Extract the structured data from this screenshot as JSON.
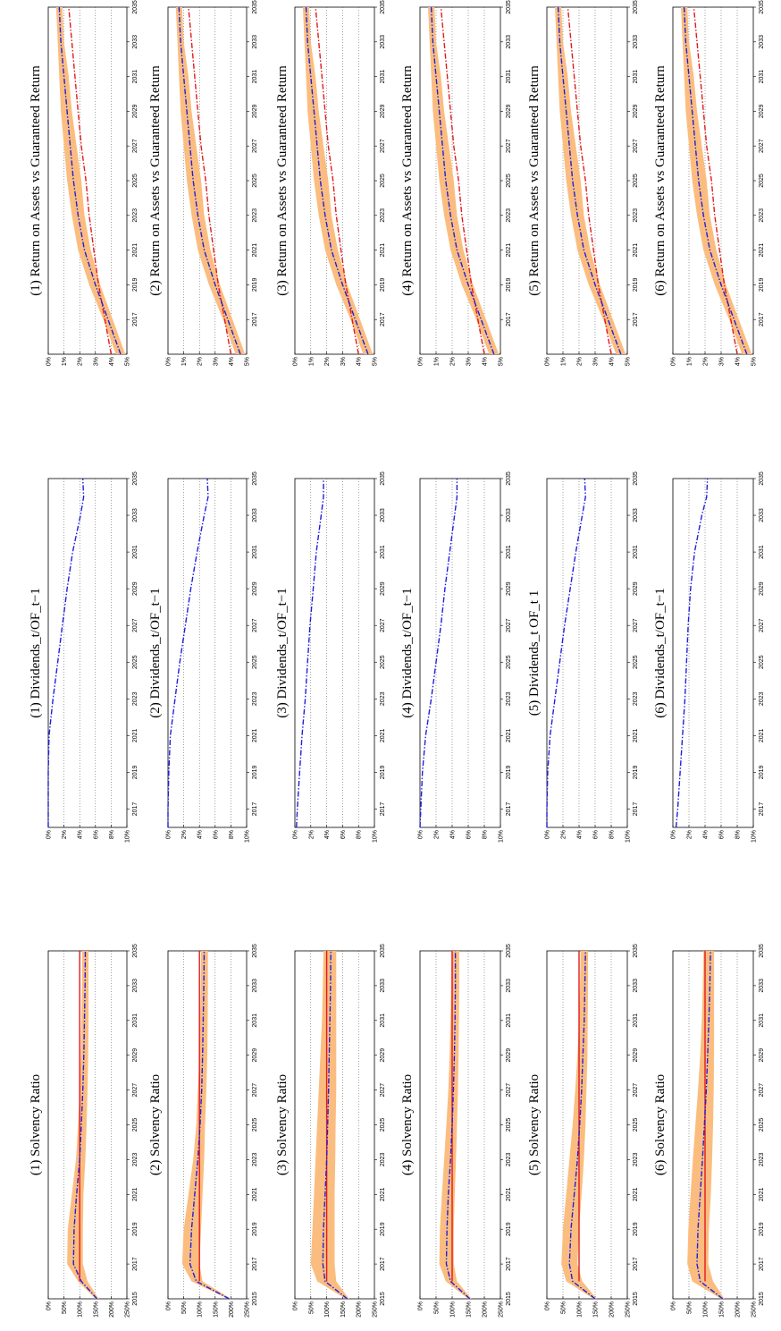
{
  "colors": {
    "band": "#fbbd7f",
    "blue_line": "#1f1fe0",
    "red_line": "#e31a1c",
    "frame": "#000000",
    "grid": "#444444"
  },
  "chart_data": [
    {
      "id": "roa",
      "type": "line",
      "titles": [
        "(1) Return on Assets vs Guaranteed Return",
        "(2) Return on Assets vs Guaranteed Return",
        "(3) Return on Assets vs Guaranteed Return",
        "(4) Return on Assets vs Guaranteed Return",
        "(5) Return on Assets vs Guaranteed Return",
        "(6) Return on Assets vs Guaranteed Return"
      ],
      "xlim": [
        2015,
        2035
      ],
      "ylim": [
        0,
        5
      ],
      "x_ticks": [
        2017,
        2019,
        2021,
        2023,
        2025,
        2027,
        2029,
        2031,
        2033,
        2035
      ],
      "x_tick_labels": [
        "2017",
        "2019",
        "2021",
        "2023",
        "2025",
        "2027",
        "2029",
        "2031",
        "2033",
        "2035"
      ],
      "y_ticks": [
        0,
        1,
        2,
        3,
        4,
        5
      ],
      "y_tick_labels": [
        "0%",
        "1%",
        "2%",
        "3%",
        "4%",
        "5%"
      ],
      "grid": "dotted",
      "x": [
        2015,
        2017,
        2019,
        2021,
        2023,
        2025,
        2027,
        2029,
        2031,
        2033,
        2035
      ],
      "band_low": [
        4.3,
        3.5,
        2.6,
        1.9,
        1.5,
        1.2,
        1.0,
        0.8,
        0.7,
        0.6,
        0.5
      ],
      "band_high": [
        4.9,
        4.1,
        3.3,
        2.7,
        2.3,
        2.1,
        1.8,
        1.5,
        1.3,
        1.0,
        0.9
      ],
      "series": [
        {
          "style": "dashdot",
          "color_key": "blue_line",
          "values": [
            4.6,
            3.8,
            3.0,
            2.3,
            1.9,
            1.6,
            1.4,
            1.2,
            1.0,
            0.8,
            0.7
          ]
        },
        {
          "style": "dashdot",
          "color_key": "red_line",
          "values": [
            4.0,
            3.6,
            3.2,
            2.9,
            2.6,
            2.4,
            2.1,
            1.9,
            1.7,
            1.5,
            1.3
          ]
        }
      ]
    },
    {
      "id": "dividends",
      "type": "line",
      "titles": [
        "(1) Dividends_t/OF_t−1",
        "(2) Dividends_t/OF_t−1",
        "(3) Dividends_t/OF_t−1",
        "(4) Dividends_t/OF_t−1",
        "(5) Dividends_t OF_t 1",
        "(6) Dividends_t/OF_t−1"
      ],
      "xlim": [
        2016,
        2035
      ],
      "ylim": [
        0,
        10
      ],
      "x_ticks": [
        2017,
        2019,
        2021,
        2023,
        2025,
        2027,
        2029,
        2031,
        2033,
        2035
      ],
      "x_tick_labels": [
        "2017",
        "2019",
        "2021",
        "2023",
        "2025",
        "2027",
        "2029",
        "2031",
        "2033",
        "2035"
      ],
      "y_ticks": [
        0,
        2,
        4,
        6,
        8,
        10
      ],
      "y_tick_labels": [
        "0%",
        "2%",
        "4%",
        "6%",
        "8%",
        "10%"
      ],
      "grid": "dotted",
      "x": [
        2016,
        2017,
        2019,
        2021,
        2023,
        2025,
        2027,
        2029,
        2031,
        2033,
        2034,
        2035
      ],
      "series": [
        {
          "style": "dashdot",
          "color_key": "blue_line",
          "values": [
            0.0,
            0.0,
            0.0,
            0.1,
            0.6,
            1.2,
            1.8,
            2.4,
            3.1,
            4.1,
            4.5,
            4.4
          ]
        },
        {
          "style": "dashdot",
          "color_key": "blue_line",
          "values": [
            0.0,
            0.0,
            0.1,
            0.3,
            0.9,
            1.5,
            2.2,
            2.9,
            3.7,
            4.6,
            5.1,
            5.0
          ]
        },
        {
          "style": "dashdot",
          "color_key": "blue_line",
          "values": [
            0.2,
            0.3,
            0.6,
            0.9,
            1.3,
            1.6,
            1.9,
            2.3,
            2.7,
            3.3,
            3.6,
            3.6
          ]
        },
        {
          "style": "dashdot",
          "color_key": "blue_line",
          "values": [
            0.0,
            0.1,
            0.3,
            0.7,
            1.4,
            2.0,
            2.6,
            3.1,
            3.7,
            4.3,
            4.6,
            4.6
          ]
        },
        {
          "style": "dashdot",
          "color_key": "blue_line",
          "values": [
            0.0,
            0.0,
            0.1,
            0.4,
            1.0,
            1.6,
            2.2,
            2.9,
            3.6,
            4.4,
            4.8,
            4.7
          ]
        },
        {
          "style": "dashdot",
          "color_key": "blue_line",
          "values": [
            0.4,
            0.6,
            0.9,
            1.2,
            1.5,
            1.7,
            1.9,
            2.2,
            2.7,
            3.6,
            4.2,
            4.3
          ]
        }
      ]
    },
    {
      "id": "solvency",
      "type": "line",
      "titles": [
        "(1) Solvency Ratio",
        "(2) Solvency Ratio",
        "(3) Solvency Ratio",
        "(4) Solvency Ratio",
        "(5) Solvency Ratio",
        "(6) Solvency Ratio"
      ],
      "xlim": [
        2015,
        2035
      ],
      "ylim": [
        0,
        250
      ],
      "x_ticks": [
        2015,
        2017,
        2019,
        2021,
        2023,
        2025,
        2027,
        2029,
        2031,
        2033,
        2035
      ],
      "x_tick_labels": [
        "2015",
        "2017",
        "2019",
        "2021",
        "2023",
        "2025",
        "2027",
        "2029",
        "2031",
        "2033",
        "2035"
      ],
      "y_ticks": [
        0,
        50,
        100,
        150,
        200,
        250
      ],
      "y_tick_labels": [
        "0%",
        "50%",
        "100%",
        "150%",
        "200%",
        "250%"
      ],
      "grid": "dotted",
      "reference_line": 100,
      "x": [
        2015,
        2016,
        2017,
        2019,
        2021,
        2023,
        2025,
        2027,
        2029,
        2031,
        2033,
        2035
      ],
      "panels": [
        {
          "band_low": [
            150,
            95,
            60,
            62,
            75,
            88,
            95,
            100,
            103,
            105,
            107,
            108
          ],
          "band_high": [
            160,
            125,
            110,
            110,
            112,
            118,
            122,
            125,
            127,
            128,
            128,
            128
          ],
          "median": [
            155,
            105,
            80,
            82,
            90,
            100,
            105,
            110,
            113,
            115,
            117,
            118
          ]
        },
        {
          "band_low": [
            190,
            75,
            45,
            50,
            65,
            80,
            90,
            95,
            100,
            102,
            104,
            105
          ],
          "band_high": [
            200,
            110,
            100,
            105,
            110,
            115,
            118,
            122,
            125,
            126,
            127,
            127
          ],
          "median": [
            195,
            90,
            70,
            75,
            85,
            95,
            102,
            107,
            110,
            112,
            114,
            115
          ]
        },
        {
          "band_low": [
            160,
            70,
            50,
            55,
            60,
            65,
            70,
            75,
            80,
            85,
            88,
            90
          ],
          "band_high": [
            170,
            130,
            125,
            125,
            125,
            127,
            128,
            130,
            130,
            130,
            130,
            130
          ],
          "median": [
            165,
            95,
            88,
            90,
            95,
            100,
            103,
            106,
            108,
            110,
            112,
            113
          ]
        },
        {
          "band_low": [
            150,
            80,
            60,
            62,
            68,
            75,
            82,
            88,
            92,
            95,
            97,
            98
          ],
          "band_high": [
            160,
            115,
            105,
            105,
            108,
            112,
            115,
            118,
            120,
            121,
            122,
            122
          ],
          "median": [
            155,
            95,
            82,
            84,
            88,
            95,
            100,
            104,
            107,
            109,
            110,
            110
          ]
        },
        {
          "band_low": [
            145,
            60,
            45,
            50,
            60,
            70,
            80,
            88,
            95,
            100,
            103,
            105
          ],
          "band_high": [
            155,
            110,
            95,
            100,
            108,
            115,
            120,
            123,
            126,
            127,
            128,
            128
          ],
          "median": [
            150,
            80,
            70,
            75,
            85,
            95,
            102,
            108,
            112,
            116,
            118,
            120
          ]
        },
        {
          "band_low": [
            150,
            60,
            45,
            48,
            55,
            62,
            70,
            78,
            85,
            90,
            93,
            95
          ],
          "band_high": [
            160,
            125,
            110,
            112,
            118,
            122,
            125,
            127,
            128,
            128,
            128,
            128
          ],
          "median": [
            155,
            85,
            75,
            78,
            85,
            92,
            98,
            104,
            108,
            112,
            115,
            117
          ]
        }
      ]
    }
  ]
}
